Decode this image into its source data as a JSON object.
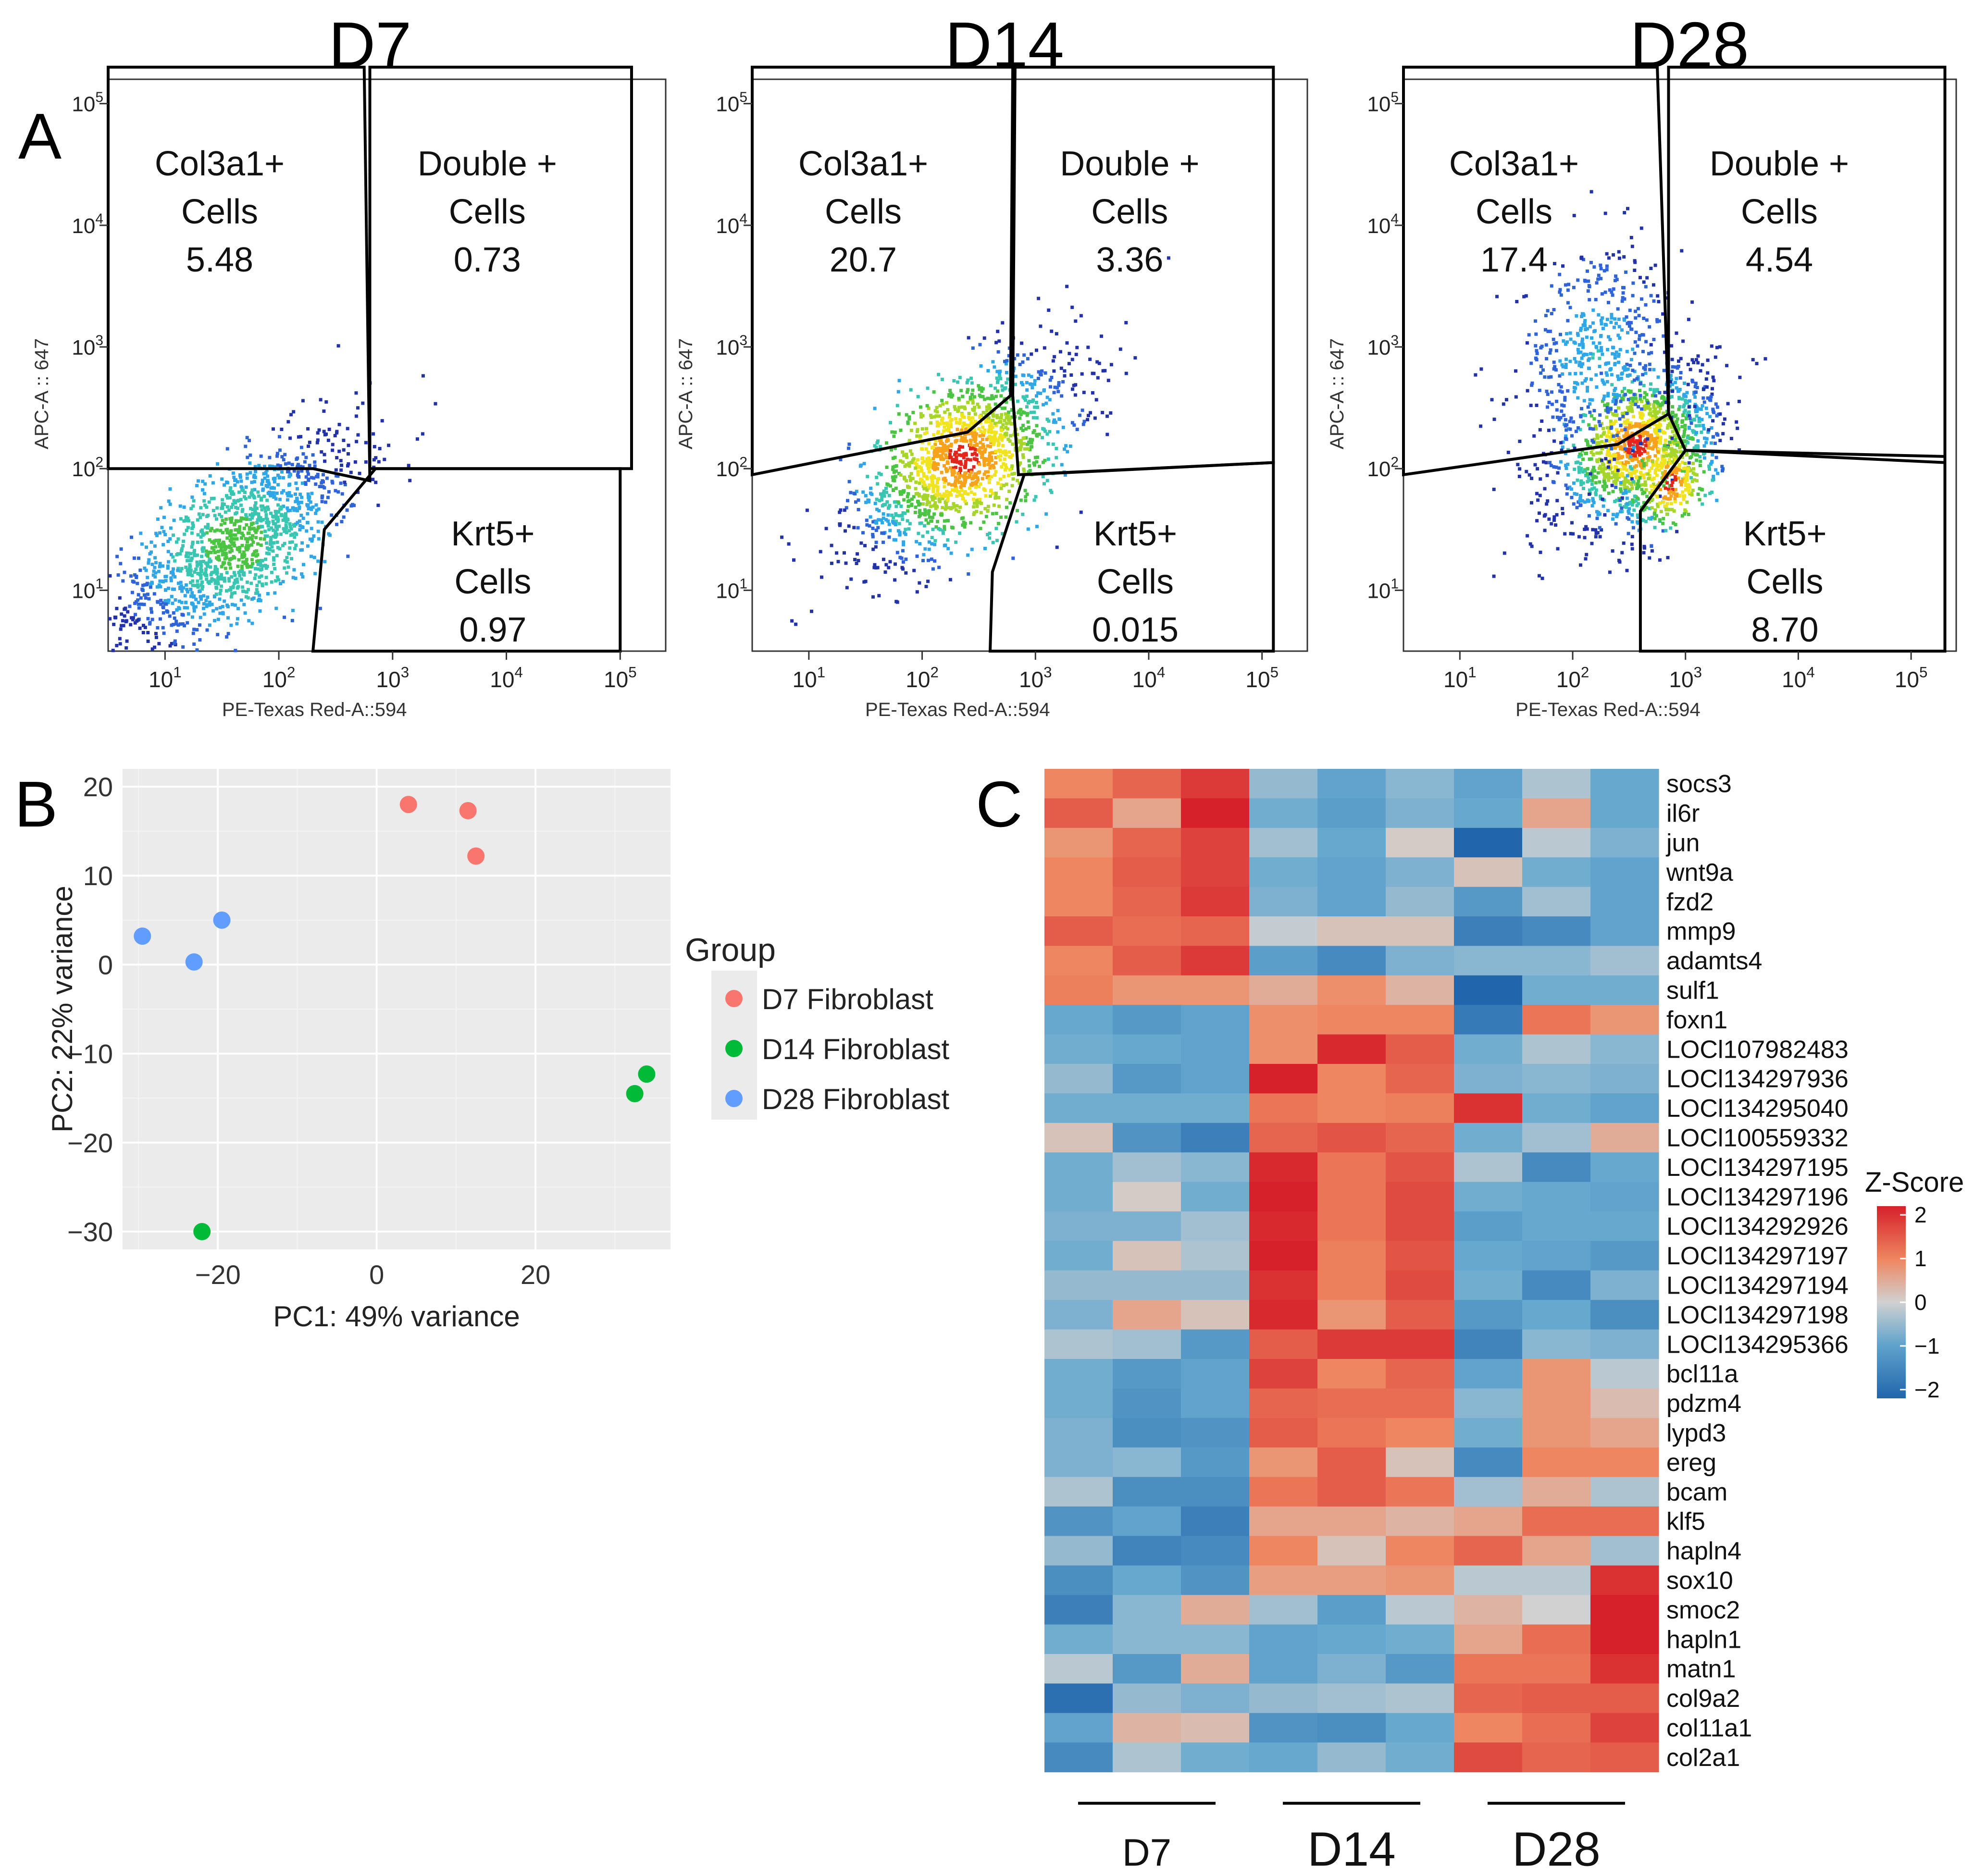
{
  "panel_letters": {
    "a": "A",
    "b": "B",
    "c": "C"
  },
  "colors": {
    "density_low": "#1f3fbf",
    "density_mid": "#33b8d8",
    "density_mid2": "#48c34a",
    "density_high": "#e6e020",
    "density_peak": "#e3261c",
    "ggplot_bg": "#ebebeb",
    "grid": "#ffffff",
    "d7": "#f8766d",
    "d14": "#00ba38",
    "d28": "#619cff",
    "heat_low": "#2166ac",
    "heat_mid": "#d1d1d1",
    "heat_high": "#d6202a"
  },
  "chart_data": [
    {
      "type": "scatter",
      "subtype": "flow-cytometry-density",
      "panels": [
        {
          "title": "D7",
          "xlabel": "PE-Texas Red-A::594",
          "ylabel": "APC-A :: 647",
          "x_ticks": [
            "10^1",
            "10^2",
            "10^3",
            "10^4",
            "10^5"
          ],
          "y_ticks": [
            "10^1",
            "10^2",
            "10^3",
            "10^4",
            "10^5"
          ],
          "xlim_log10": [
            0.5,
            5.4
          ],
          "ylim_log10": [
            0.5,
            5.2
          ],
          "populations": [
            {
              "cx": 1.6,
              "cy": 1.4,
              "sx": 0.55,
              "sy": 0.45,
              "rho": 0.7,
              "peak": 0.55,
              "n": 1400
            }
          ],
          "gates": [
            {
              "label": "Col3a1+",
              "label2": "Cells",
              "value": "5.48",
              "pos": "top-left"
            },
            {
              "label": "Double +",
              "label2": "Cells",
              "value": "0.73",
              "pos": "top-right"
            },
            {
              "label": "Krt5+",
              "label2": "Cells",
              "value": "0.97",
              "pos": "bottom-right"
            }
          ],
          "gate_polygons_log10": [
            [
              [
                0.5,
                5.3
              ],
              [
                2.75,
                5.3
              ],
              [
                2.8,
                1.9
              ],
              [
                2.3,
                2.0
              ],
              [
                0.5,
                2.0
              ]
            ],
            [
              [
                2.8,
                5.3
              ],
              [
                5.1,
                5.3
              ],
              [
                5.1,
                2.0
              ],
              [
                2.8,
                2.0
              ]
            ],
            [
              [
                2.85,
                2.0
              ],
              [
                5.0,
                2.0
              ],
              [
                5.0,
                0.5
              ],
              [
                2.3,
                0.5
              ],
              [
                2.4,
                1.5
              ]
            ]
          ]
        },
        {
          "title": "D14",
          "xlabel": "PE-Texas Red-A::594",
          "ylabel": "APC-A :: 647",
          "x_ticks": [
            "10^1",
            "10^2",
            "10^3",
            "10^4",
            "10^5"
          ],
          "y_ticks": [
            "10^1",
            "10^2",
            "10^3",
            "10^4",
            "10^5"
          ],
          "xlim_log10": [
            0.5,
            5.4
          ],
          "ylim_log10": [
            0.5,
            5.2
          ],
          "populations": [
            {
              "cx": 2.35,
              "cy": 2.1,
              "sx": 0.5,
              "sy": 0.42,
              "rho": 0.6,
              "peak": 1.0,
              "n": 1500
            }
          ],
          "gates": [
            {
              "label": "Col3a1+",
              "label2": "Cells",
              "value": "20.7",
              "pos": "top-left"
            },
            {
              "label": "Double +",
              "label2": "Cells",
              "value": "3.36",
              "pos": "top-right"
            },
            {
              "label": "Krt5+",
              "label2": "Cells",
              "value": "0.015",
              "pos": "bottom-right"
            }
          ],
          "gate_polygons_log10": [
            [
              [
                0.5,
                5.3
              ],
              [
                2.8,
                5.3
              ],
              [
                2.78,
                2.6
              ],
              [
                2.4,
                2.3
              ],
              [
                0.5,
                1.95
              ]
            ],
            [
              [
                2.82,
                5.3
              ],
              [
                5.1,
                5.3
              ],
              [
                5.1,
                2.05
              ],
              [
                2.85,
                1.95
              ],
              [
                2.8,
                2.6
              ]
            ],
            [
              [
                2.9,
                1.95
              ],
              [
                5.1,
                2.05
              ],
              [
                5.1,
                0.5
              ],
              [
                2.6,
                0.5
              ],
              [
                2.62,
                1.15
              ]
            ]
          ]
        },
        {
          "title": "D28",
          "xlabel": "PE-Texas Red-A::594",
          "ylabel": "APC-A :: 647",
          "x_ticks": [
            "10^1",
            "10^2",
            "10^3",
            "10^4",
            "10^5"
          ],
          "y_ticks": [
            "10^1",
            "10^2",
            "10^3",
            "10^4",
            "10^5"
          ],
          "xlim_log10": [
            0.5,
            5.4
          ],
          "ylim_log10": [
            0.5,
            5.2
          ],
          "populations": [
            {
              "cx": 2.55,
              "cy": 2.2,
              "sx": 0.35,
              "sy": 0.32,
              "rho": 0.6,
              "peak": 1.0,
              "n": 1100
            },
            {
              "cx": 2.2,
              "cy": 2.95,
              "sx": 0.35,
              "sy": 0.45,
              "rho": 0.2,
              "peak": 0.35,
              "n": 500
            },
            {
              "cx": 2.85,
              "cy": 1.9,
              "sx": 0.22,
              "sy": 0.25,
              "rho": 0.5,
              "peak": 1.0,
              "n": 350
            }
          ],
          "gates": [
            {
              "label": "Col3a1+",
              "label2": "Cells",
              "value": "17.4",
              "pos": "top-left"
            },
            {
              "label": "Double +",
              "label2": "Cells",
              "value": "4.54",
              "pos": "top-right"
            },
            {
              "label": "Krt5+",
              "label2": "Cells",
              "value": "8.70",
              "pos": "bottom-right"
            }
          ],
          "gate_polygons_log10": [
            [
              [
                0.5,
                5.3
              ],
              [
                2.75,
                5.3
              ],
              [
                2.85,
                2.45
              ],
              [
                2.4,
                2.2
              ],
              [
                0.5,
                1.95
              ]
            ],
            [
              [
                2.85,
                5.3
              ],
              [
                5.3,
                5.3
              ],
              [
                5.3,
                2.05
              ],
              [
                3.0,
                2.15
              ],
              [
                2.85,
                2.45
              ]
            ],
            [
              [
                3.0,
                2.15
              ],
              [
                5.3,
                2.1
              ],
              [
                5.3,
                0.5
              ],
              [
                2.6,
                0.5
              ],
              [
                2.6,
                1.65
              ]
            ]
          ]
        }
      ]
    },
    {
      "type": "scatter",
      "title": "",
      "xlabel": "PC1: 49% variance",
      "ylabel": "PC2: 22% variance",
      "xlim": [
        -32,
        37
      ],
      "ylim": [
        -32,
        22
      ],
      "x_ticks": [
        -20,
        0,
        20
      ],
      "y_ticks": [
        -30,
        -20,
        -10,
        0,
        10,
        20
      ],
      "x_tick_labels": [
        "−20",
        "0",
        "20"
      ],
      "y_tick_labels": [
        "−30",
        "−20",
        "−10",
        "0",
        "10",
        "20"
      ],
      "legend_title": "Group",
      "legend_position": "right",
      "series": [
        {
          "name": "D7 Fibroblast",
          "color": "#f8766d",
          "points": [
            [
              4,
              18
            ],
            [
              11.5,
              17.3
            ],
            [
              12.5,
              12.2
            ]
          ]
        },
        {
          "name": "D14 Fibroblast",
          "color": "#00ba38",
          "points": [
            [
              -22,
              -30
            ],
            [
              32.5,
              -14.5
            ],
            [
              34,
              -12.3
            ]
          ]
        },
        {
          "name": "D28 Fibroblast",
          "color": "#619cff",
          "points": [
            [
              -29.5,
              3.2
            ],
            [
              -23,
              0.3
            ],
            [
              -19.5,
              5
            ]
          ]
        }
      ]
    },
    {
      "type": "heatmap",
      "title": "",
      "legend_title": "Z-Score",
      "legend_ticks": [
        2,
        1,
        0,
        -1,
        -2
      ],
      "legend_tick_labels": [
        "2",
        "1",
        "0",
        "−1",
        "−2"
      ],
      "value_range": [
        -2.2,
        2.2
      ],
      "groups": [
        {
          "label": "D7",
          "columns": [
            0,
            1,
            2
          ]
        },
        {
          "label": "D14",
          "columns": [
            3,
            4,
            5
          ]
        },
        {
          "label": "D28",
          "columns": [
            6,
            7,
            8
          ]
        }
      ],
      "rows": [
        "socs3",
        "il6r",
        "jun",
        "wnt9a",
        "fzd2",
        "mmp9",
        "adamts4",
        "sulf1",
        "foxn1",
        "LOCl107982483",
        "LOCl134297936",
        "LOCl134295040",
        "LOCl100559332",
        "LOCl134297195",
        "LOCl134297196",
        "LOCl134292926",
        "LOCl134297197",
        "LOCl134297194",
        "LOCl134297198",
        "LOCl134295366",
        "bcl11a",
        "pdzm4",
        "lypd3",
        "ereg",
        "bcam",
        "klf5",
        "hapln4",
        "sox10",
        "smoc2",
        "hapln1",
        "matn1",
        "col9a2",
        "col11a1",
        "col2a1"
      ],
      "values": [
        [
          1.0,
          1.4,
          1.9,
          -0.5,
          -1.0,
          -0.6,
          -1.0,
          -0.3,
          -0.9
        ],
        [
          1.5,
          0.6,
          2.2,
          -0.8,
          -1.1,
          -0.7,
          -0.9,
          0.6,
          -0.9
        ],
        [
          0.8,
          1.4,
          1.8,
          -0.4,
          -0.9,
          0.1,
          -2.2,
          -0.2,
          -0.7
        ],
        [
          1.0,
          1.5,
          1.8,
          -0.8,
          -1.0,
          -0.7,
          0.2,
          -0.8,
          -1.0
        ],
        [
          1.0,
          1.4,
          1.9,
          -0.7,
          -1.0,
          -0.5,
          -1.2,
          -0.4,
          -1.0
        ],
        [
          1.5,
          1.3,
          1.4,
          -0.1,
          0.2,
          0.2,
          -1.7,
          -1.5,
          -1.0
        ],
        [
          1.0,
          1.5,
          1.9,
          -1.1,
          -1.5,
          -0.7,
          -0.6,
          -0.6,
          -0.4
        ],
        [
          1.1,
          0.8,
          0.8,
          0.5,
          0.9,
          0.4,
          -2.2,
          -0.8,
          -0.8
        ],
        [
          -0.9,
          -1.2,
          -1.0,
          0.9,
          1.0,
          1.0,
          -1.8,
          1.2,
          0.8
        ],
        [
          -0.8,
          -0.9,
          -1.0,
          0.9,
          2.1,
          1.5,
          -0.8,
          -0.3,
          -0.6
        ],
        [
          -0.5,
          -1.2,
          -1.0,
          2.2,
          1.0,
          1.4,
          -0.7,
          -0.6,
          -0.7
        ],
        [
          -0.8,
          -0.8,
          -0.8,
          1.2,
          1.0,
          1.1,
          2.0,
          -0.8,
          -1.0
        ],
        [
          0.2,
          -1.3,
          -1.7,
          1.4,
          1.6,
          1.4,
          -0.8,
          -0.4,
          0.5
        ],
        [
          -0.8,
          -0.4,
          -0.6,
          2.1,
          1.2,
          1.6,
          -0.3,
          -1.5,
          -0.9
        ],
        [
          -0.8,
          0.1,
          -0.8,
          2.2,
          1.2,
          1.7,
          -0.8,
          -0.9,
          -1.0
        ],
        [
          -0.7,
          -0.7,
          -0.4,
          2.1,
          1.2,
          1.7,
          -1.1,
          -0.9,
          -0.9
        ],
        [
          -0.8,
          0.2,
          -0.3,
          2.2,
          1.1,
          1.6,
          -0.9,
          -1.0,
          -1.2
        ],
        [
          -0.5,
          -0.5,
          -0.5,
          2.0,
          1.1,
          1.7,
          -0.8,
          -1.5,
          -0.7
        ],
        [
          -0.7,
          0.6,
          0.2,
          2.1,
          0.8,
          1.5,
          -1.2,
          -0.9,
          -1.4
        ],
        [
          -0.3,
          -0.4,
          -1.2,
          1.5,
          1.9,
          1.9,
          -1.6,
          -0.6,
          -0.7
        ],
        [
          -0.8,
          -1.2,
          -1.0,
          1.8,
          1.0,
          1.4,
          -1.0,
          0.8,
          -0.2
        ],
        [
          -0.8,
          -1.3,
          -1.0,
          1.4,
          1.3,
          1.3,
          -0.6,
          0.8,
          0.3
        ],
        [
          -0.7,
          -1.4,
          -1.3,
          1.5,
          1.2,
          1.0,
          -0.8,
          0.8,
          0.6
        ],
        [
          -0.7,
          -0.6,
          -1.2,
          0.8,
          1.5,
          0.2,
          -1.5,
          1.0,
          1.0
        ],
        [
          -0.3,
          -1.4,
          -1.4,
          1.2,
          1.5,
          1.2,
          -0.4,
          0.5,
          -0.3
        ],
        [
          -1.3,
          -1.0,
          -1.7,
          0.6,
          0.6,
          0.4,
          0.6,
          1.3,
          1.3
        ],
        [
          -0.5,
          -1.6,
          -1.5,
          1.0,
          0.2,
          1.0,
          1.4,
          0.6,
          -0.4
        ],
        [
          -1.4,
          -0.9,
          -1.3,
          0.7,
          0.7,
          0.8,
          -0.2,
          -0.2,
          2.0
        ],
        [
          -1.7,
          -0.6,
          0.5,
          -0.4,
          -1.1,
          -0.2,
          0.4,
          0.0,
          2.2
        ],
        [
          -0.8,
          -0.6,
          -0.6,
          -1.0,
          -0.9,
          -0.8,
          0.6,
          1.3,
          2.2
        ],
        [
          -0.2,
          -1.2,
          0.5,
          -1.0,
          -0.7,
          -1.2,
          1.2,
          1.2,
          2.0
        ],
        [
          -2.0,
          -0.5,
          -0.7,
          -0.5,
          -0.4,
          -0.3,
          1.4,
          1.5,
          1.5
        ],
        [
          -1.0,
          0.4,
          0.3,
          -1.3,
          -1.4,
          -0.9,
          1.0,
          1.3,
          1.8
        ],
        [
          -1.5,
          -0.3,
          -0.8,
          -0.9,
          -0.5,
          -0.8,
          1.7,
          1.4,
          1.5
        ]
      ]
    }
  ]
}
